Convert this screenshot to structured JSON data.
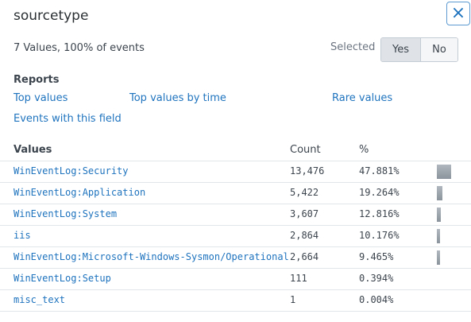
{
  "header": {
    "title": "sourcetype",
    "close": "×"
  },
  "summary": "7 Values, 100% of events",
  "selected": {
    "label": "Selected",
    "options": [
      "Yes",
      "No"
    ],
    "active": 0
  },
  "reports": {
    "title": "Reports",
    "links": [
      "Top values",
      "Top values by time",
      "Rare values",
      "Events with this field"
    ]
  },
  "table": {
    "columns": [
      "Values",
      "Count",
      "%"
    ],
    "rows": [
      {
        "value": "WinEventLog:Security",
        "count": "13,476",
        "percent": 47.881,
        "percent_label": "47.881%"
      },
      {
        "value": "WinEventLog:Application",
        "count": "5,422",
        "percent": 19.264,
        "percent_label": "19.264%"
      },
      {
        "value": "WinEventLog:System",
        "count": "3,607",
        "percent": 12.816,
        "percent_label": "12.816%"
      },
      {
        "value": "iis",
        "count": "2,864",
        "percent": 10.176,
        "percent_label": "10.176%"
      },
      {
        "value": "WinEventLog:Microsoft-Windows-Sysmon/Operational",
        "count": "2,664",
        "percent": 9.465,
        "percent_label": "9.465%"
      },
      {
        "value": "WinEventLog:Setup",
        "count": "111",
        "percent": 0.394,
        "percent_label": "0.394%"
      },
      {
        "value": "misc_text",
        "count": "1",
        "percent": 0.004,
        "percent_label": "0.004%"
      }
    ]
  }
}
